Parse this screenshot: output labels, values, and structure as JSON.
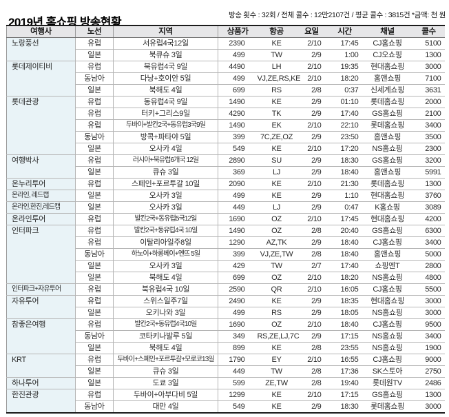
{
  "chart_data": {
    "type": "table",
    "title": "2019년 홈쇼핑 방송현황",
    "subtitle": "방송 횟수 : 32회 / 전체 콜수 : 12만2107건 / 평균 콜수 : 3815건 *금액: 천 원",
    "columns": [
      "여행사",
      "노선",
      "지역",
      "상품가",
      "항공",
      "요일",
      "시간",
      "채널",
      "콜수"
    ],
    "groups": [
      {
        "agency": "노랑풍선",
        "rows": [
          {
            "route": "유럽",
            "region": "서유럽4국12일",
            "price": "2390",
            "airline": "KE",
            "day": "2/10",
            "time": "17:45",
            "channel": "CJ홈쇼핑",
            "calls": "5100"
          },
          {
            "route": "일본",
            "region": "북큐슈 3일",
            "price": "499",
            "airline": "TW",
            "day": "2/9",
            "time": "1:00",
            "channel": "CJ오쇼핑",
            "calls": "1300"
          }
        ]
      },
      {
        "agency": "롯데제이티비",
        "rows": [
          {
            "route": "유럽",
            "region": "북유럽4국 9일",
            "price": "4490",
            "airline": "LH",
            "day": "2/10",
            "time": "19:35",
            "channel": "현대홈쇼핑",
            "calls": "3000"
          },
          {
            "route": "동남아",
            "region": "다낭+호이안 5일",
            "price": "499",
            "airline": "VJ,ZE,RS,KE",
            "day": "2/10",
            "time": "18:20",
            "channel": "홈앤쇼핑",
            "calls": "7100"
          },
          {
            "route": "일본",
            "region": "북해도 4일",
            "price": "699",
            "airline": "RS",
            "day": "2/8",
            "time": "0:37",
            "channel": "신세계쇼핑",
            "calls": "3631"
          }
        ]
      },
      {
        "agency": "롯데관광",
        "rows": [
          {
            "route": "유럽",
            "region": "동유럽4국 9일",
            "price": "1490",
            "airline": "KE",
            "day": "2/9",
            "time": "01:10",
            "channel": "롯데홈쇼핑",
            "calls": "2000"
          },
          {
            "route": "유럽",
            "region": "터키+그리스9일",
            "price": "4290",
            "airline": "TK",
            "day": "2/9",
            "time": "17:40",
            "channel": "GS홈쇼핑",
            "calls": "2100"
          },
          {
            "route": "유럽",
            "region": "두바이+발칸2국+동유럽3국9일",
            "price": "1490",
            "airline": "EK",
            "day": "2/10",
            "time": "22:10",
            "channel": "롯데홈쇼핑",
            "calls": "3400"
          },
          {
            "route": "동남아",
            "region": "방콕+파타야 5일",
            "price": "399",
            "airline": "7C,ZE,OZ",
            "day": "2/9",
            "time": "23:50",
            "channel": "홈앤쇼핑",
            "calls": "3500"
          },
          {
            "route": "일본",
            "region": "오사카 4일",
            "price": "549",
            "airline": "KE",
            "day": "2/10",
            "time": "17:20",
            "channel": "NS홈쇼핑",
            "calls": "2300"
          }
        ]
      },
      {
        "agency": "여행박사",
        "rows": [
          {
            "route": "유럽",
            "region": "러시아+북유럽6개국 12일",
            "price": "2890",
            "airline": "SU",
            "day": "2/9",
            "time": "18:30",
            "channel": "GS홈쇼핑",
            "calls": "3200"
          },
          {
            "route": "일본",
            "region": "큐슈 3일",
            "price": "369",
            "airline": "LJ",
            "day": "2/9",
            "time": "18:40",
            "channel": "홈앤쇼핑",
            "calls": "5991"
          }
        ]
      },
      {
        "agency": "온누리투어",
        "rows": [
          {
            "route": "유럽",
            "region": "스페인+포르투갈 10일",
            "price": "2090",
            "airline": "KE",
            "day": "2/10",
            "time": "21:30",
            "channel": "롯데홈쇼핑",
            "calls": "1300"
          }
        ]
      },
      {
        "agency": "온라인, 레드캡",
        "rows": [
          {
            "route": "일본",
            "region": "오사카 3일",
            "price": "499",
            "airline": "KE",
            "day": "2/9",
            "time": "1:10",
            "channel": "현대홈쇼핑",
            "calls": "3760"
          }
        ]
      },
      {
        "agency": "온라인,한진,레드캡",
        "rows": [
          {
            "route": "일본",
            "region": "오사카 3일",
            "price": "449",
            "airline": "LJ",
            "day": "2/9",
            "time": "0:47",
            "channel": "K홈쇼핑",
            "calls": "3089"
          }
        ]
      },
      {
        "agency": "온라인투어",
        "rows": [
          {
            "route": "유럽",
            "region": "발칸2국+동유럽5국12일",
            "price": "1690",
            "airline": "OZ",
            "day": "2/10",
            "time": "17:45",
            "channel": "현대홈쇼핑",
            "calls": "4200"
          }
        ]
      },
      {
        "agency": "인터파크",
        "rows": [
          {
            "route": "유럽",
            "region": "발칸2국+동유럽4국 10일",
            "price": "1490",
            "airline": "OZ",
            "day": "2/8",
            "time": "20:40",
            "channel": "GS홈쇼핑",
            "calls": "6300"
          },
          {
            "route": "유럽",
            "region": "이탈리아일주8일",
            "price": "1290",
            "airline": "AZ,TK",
            "day": "2/9",
            "time": "18:40",
            "channel": "CJ홈쇼핑",
            "calls": "3400"
          },
          {
            "route": "동남아",
            "region": "하노이+하롱베이+옌뜨 5일",
            "price": "399",
            "airline": "VJ,ZE,TW",
            "day": "2/8",
            "time": "18:40",
            "channel": "홈앤쇼핑",
            "calls": "5000"
          },
          {
            "route": "일본",
            "region": "오사카 3일",
            "price": "429",
            "airline": "TW",
            "day": "2/7",
            "time": "17:40",
            "channel": "쇼핑엔T",
            "calls": "2800"
          },
          {
            "route": "일본",
            "region": "북해도 4일",
            "price": "699",
            "airline": "OZ",
            "day": "2/10",
            "time": "18:20",
            "channel": "NS홈쇼핑",
            "calls": "4800"
          }
        ]
      },
      {
        "agency": "인터파크+자유투어",
        "rows": [
          {
            "route": "유럽",
            "region": "북유럽4국 10일",
            "price": "2590",
            "airline": "QR",
            "day": "2/10",
            "time": "16:05",
            "channel": "CJ홈쇼핑",
            "calls": "5500"
          }
        ]
      },
      {
        "agency": "자유투어",
        "rows": [
          {
            "route": "유럽",
            "region": "스위스일주7일",
            "price": "2490",
            "airline": "KE",
            "day": "2/9",
            "time": "18:35",
            "channel": "현대홈쇼핑",
            "calls": "3000"
          },
          {
            "route": "일본",
            "region": "오키나와 3일",
            "price": "499",
            "airline": "RS",
            "day": "2/9",
            "time": "18:05",
            "channel": "NS홈쇼핑",
            "calls": "3000"
          }
        ]
      },
      {
        "agency": "참좋은여행",
        "rows": [
          {
            "route": "유럽",
            "region": "발칸2국+동유럽4국10일",
            "price": "1690",
            "airline": "OZ",
            "day": "2/10",
            "time": "18:40",
            "channel": "CJ홈쇼핑",
            "calls": "9500"
          },
          {
            "route": "동남아",
            "region": "코타키나발루 5일",
            "price": "349",
            "airline": "RS,ZE,LJ,7C",
            "day": "2/9",
            "time": "17:15",
            "channel": "NS홈쇼핑",
            "calls": "3400"
          },
          {
            "route": "일본",
            "region": "북해도 4일",
            "price": "899",
            "airline": "KE",
            "day": "2/8",
            "time": "23:55",
            "channel": "NS홈쇼핑",
            "calls": "1900"
          }
        ]
      },
      {
        "agency": "KRT",
        "rows": [
          {
            "route": "유럽",
            "region": "두바이+스페인+포르투갈+모로코13일",
            "price": "1790",
            "airline": "EY",
            "day": "2/10",
            "time": "16:55",
            "channel": "CJ홈쇼핑",
            "calls": "9000"
          },
          {
            "route": "일본",
            "region": "큐슈 3일",
            "price": "449",
            "airline": "TW",
            "day": "2/8",
            "time": "17:36",
            "channel": "SK스토아",
            "calls": "2750"
          }
        ]
      },
      {
        "agency": "하나투어",
        "rows": [
          {
            "route": "일본",
            "region": "도쿄 3일",
            "price": "599",
            "airline": "ZE,TW",
            "day": "2/8",
            "time": "19:40",
            "channel": "롯데원TV",
            "calls": "2486"
          }
        ]
      },
      {
        "agency": "한진관광",
        "rows": [
          {
            "route": "유럽",
            "region": "두바이+아부다비 5일",
            "price": "1299",
            "airline": "KE",
            "day": "2/10",
            "time": "17:15",
            "channel": "GS홈쇼핑",
            "calls": "1300"
          },
          {
            "route": "동남아",
            "region": "대만 4일",
            "price": "549",
            "airline": "KE",
            "day": "2/9",
            "time": "18:30",
            "channel": "롯데홈쇼핑",
            "calls": "3000"
          }
        ]
      }
    ]
  },
  "colors": {
    "agency_column_bg": "#e9f3f7",
    "header_bg": "#e6e6e8",
    "rule_dark": "#1b1b1b",
    "rule_light": "#b5b5b5"
  }
}
